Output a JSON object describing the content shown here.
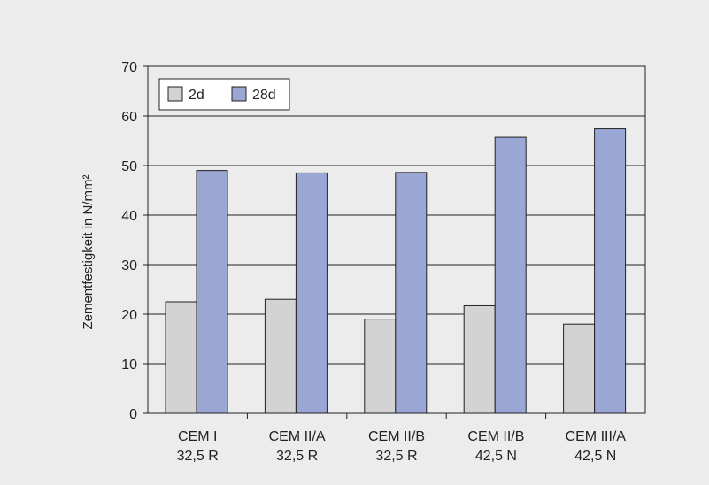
{
  "chart_data": {
    "type": "bar",
    "title": "",
    "xlabel": "",
    "ylabel": "Zementfestigkeit in N/mm²",
    "ylim": [
      0,
      70
    ],
    "yticks": [
      0,
      10,
      20,
      30,
      40,
      50,
      60,
      70
    ],
    "grid": "horizontal",
    "legend_position": "top-left",
    "categories": [
      [
        "CEM I",
        "32,5 R"
      ],
      [
        "CEM II/A",
        "32,5 R"
      ],
      [
        "CEM II/B",
        "32,5 R"
      ],
      [
        "CEM II/B",
        "42,5 N"
      ],
      [
        "CEM III/A",
        "42,5 N"
      ]
    ],
    "series": [
      {
        "name": "2d",
        "color": "#d3d3d3",
        "values": [
          22.5,
          23.0,
          19.0,
          21.7,
          18.0
        ]
      },
      {
        "name": "28d",
        "color": "#9aa6d4",
        "values": [
          49.0,
          48.5,
          48.6,
          55.7,
          57.4
        ]
      }
    ]
  }
}
